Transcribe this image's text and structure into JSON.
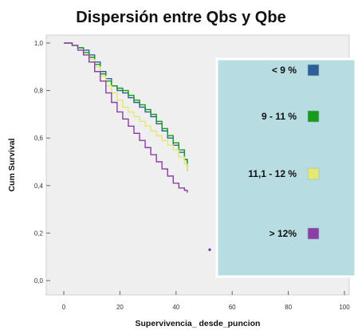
{
  "chart_data": {
    "type": "line",
    "title": "Dispersión entre Qbs y Qbe",
    "xlabel": "Supervivencia_ desde_puncion",
    "ylabel": "Cum Survival",
    "xlim": [
      0,
      100
    ],
    "ylim": [
      0.0,
      1.0
    ],
    "x_ticks": [
      0,
      20,
      40,
      60,
      80,
      100
    ],
    "x_tick_labels": [
      "0",
      "20",
      "40",
      "60",
      "80",
      "100"
    ],
    "y_ticks": [
      0.0,
      0.2,
      0.4,
      0.6,
      0.8,
      1.0
    ],
    "y_tick_labels": [
      "0,0",
      "0,2",
      "0,4",
      "0,6",
      "0,8",
      "1,0"
    ],
    "legend_position": "right",
    "plot_background": "#efefef",
    "legend_background": "#b7dde3",
    "series": [
      {
        "name": "< 9 %",
        "color": "#2f5f99",
        "x": [
          0,
          3,
          5,
          7,
          9,
          11,
          13,
          15,
          17,
          19,
          21,
          23,
          25,
          27,
          29,
          31,
          33,
          35,
          37,
          39,
          41,
          43,
          44
        ],
        "y": [
          1.0,
          0.99,
          0.98,
          0.97,
          0.95,
          0.92,
          0.88,
          0.85,
          0.82,
          0.8,
          0.79,
          0.77,
          0.75,
          0.73,
          0.71,
          0.69,
          0.66,
          0.63,
          0.6,
          0.57,
          0.54,
          0.51,
          0.48
        ]
      },
      {
        "name": "9 - 11 %",
        "color": "#169c1b",
        "x": [
          0,
          3,
          5,
          7,
          9,
          11,
          13,
          15,
          17,
          19,
          21,
          23,
          25,
          27,
          29,
          31,
          33,
          35,
          37,
          39,
          41,
          43,
          44
        ],
        "y": [
          1.0,
          0.99,
          0.98,
          0.96,
          0.94,
          0.91,
          0.87,
          0.84,
          0.82,
          0.81,
          0.8,
          0.78,
          0.76,
          0.74,
          0.72,
          0.7,
          0.67,
          0.64,
          0.61,
          0.58,
          0.55,
          0.51,
          0.46
        ]
      },
      {
        "name": "11,1 - 12 %",
        "color": "#e4e870",
        "x": [
          0,
          3,
          5,
          7,
          9,
          11,
          13,
          15,
          17,
          19,
          21,
          23,
          25,
          27,
          29,
          31,
          33,
          35,
          37,
          39,
          41,
          43,
          44
        ],
        "y": [
          1.0,
          0.99,
          0.97,
          0.95,
          0.93,
          0.9,
          0.86,
          0.82,
          0.79,
          0.76,
          0.73,
          0.71,
          0.69,
          0.67,
          0.65,
          0.63,
          0.61,
          0.59,
          0.57,
          0.55,
          0.52,
          0.49,
          0.46
        ]
      },
      {
        "name": "> 12%",
        "color": "#8a3fa6",
        "x": [
          0,
          3,
          5,
          7,
          9,
          11,
          13,
          15,
          17,
          19,
          21,
          23,
          25,
          27,
          29,
          31,
          33,
          35,
          37,
          39,
          41,
          43,
          44
        ],
        "y": [
          1.0,
          0.99,
          0.97,
          0.95,
          0.92,
          0.88,
          0.84,
          0.79,
          0.75,
          0.71,
          0.68,
          0.65,
          0.62,
          0.59,
          0.56,
          0.53,
          0.5,
          0.47,
          0.44,
          0.41,
          0.39,
          0.38,
          0.37
        ]
      }
    ],
    "annotations": [
      {
        "type": "point",
        "x": 52,
        "y": 0.13,
        "color": "#6d2fa0"
      }
    ]
  }
}
